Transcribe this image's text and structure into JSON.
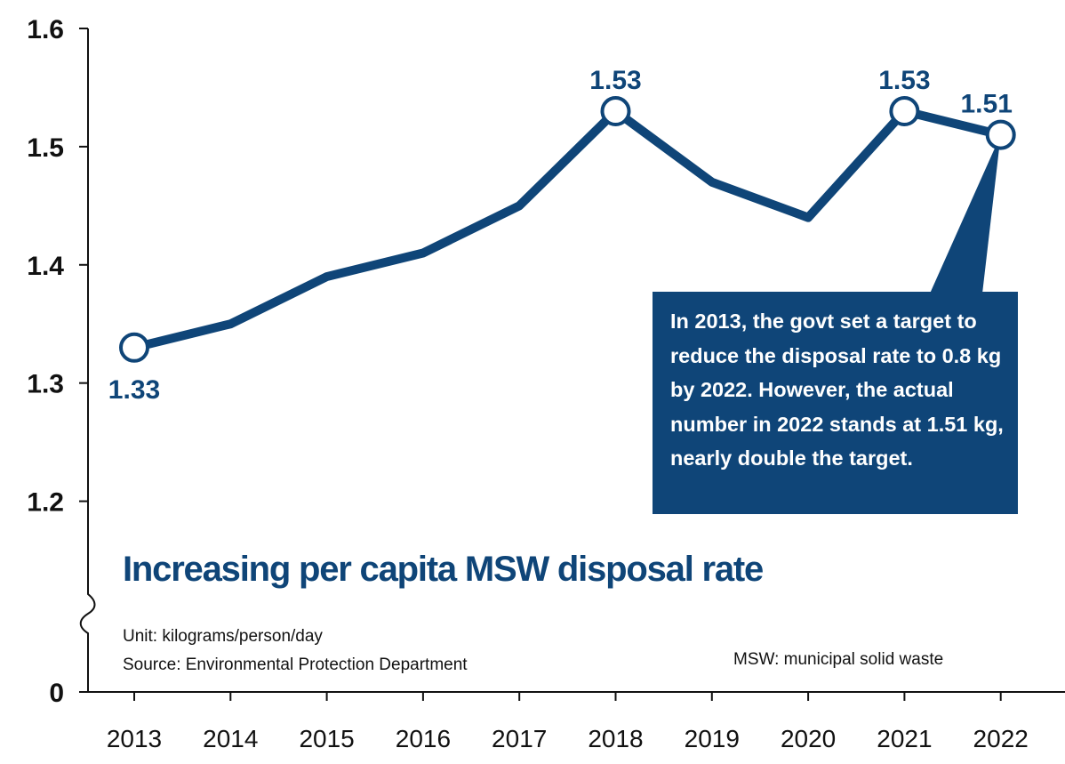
{
  "chart_data": {
    "type": "line",
    "title": "Increasing per capita MSW disposal rate",
    "unit_note": "Unit: kilograms/person/day",
    "source_note": "Source: Environmental Protection Department",
    "abbreviation_note": "MSW: municipal solid waste",
    "x": [
      "2013",
      "2014",
      "2015",
      "2016",
      "2017",
      "2018",
      "2019",
      "2020",
      "2021",
      "2022"
    ],
    "series": [
      {
        "values": [
          1.33,
          1.35,
          1.39,
          1.41,
          1.45,
          1.53,
          1.47,
          1.44,
          1.53,
          1.51
        ],
        "color": "#0f4578",
        "labeled_points": [
          {
            "index": 0,
            "label": "1.33",
            "position": "below"
          },
          {
            "index": 5,
            "label": "1.53",
            "position": "above"
          },
          {
            "index": 8,
            "label": "1.53",
            "position": "above"
          },
          {
            "index": 9,
            "label": "1.51",
            "position": "above"
          }
        ]
      }
    ],
    "y_ticks": [
      "0",
      "1.2",
      "1.3",
      "1.4",
      "1.5",
      "1.6"
    ],
    "ylim": [
      1.15,
      1.6
    ],
    "y_axis_break": "between 0 and 1.2",
    "grid": false,
    "annotation": {
      "text": "In 2013, the govt set a target to reduce the disposal rate to 0.8 kg by 2022. However, the actual number in 2022 stands at 1.51 kg, nearly double the target.",
      "points_to": "2022",
      "color": "#0f4578"
    }
  }
}
